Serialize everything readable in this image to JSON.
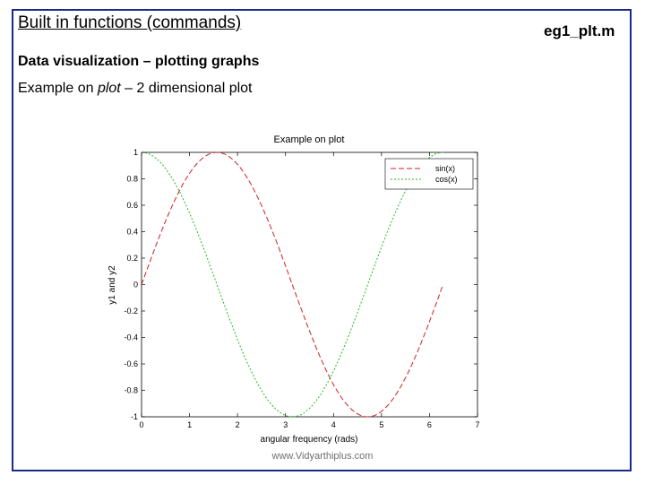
{
  "slide": {
    "title": "Built in functions (commands)",
    "file_name": "eg1_plt.m",
    "heading": "Data visualization – plotting graphs",
    "subheading_prefix": "Example on ",
    "subheading_emph": "plot",
    "subheading_suffix": " – 2 dimensional plot",
    "watermark": "www.Vidyarthiplus.com"
  },
  "colors": {
    "border": "#1a2a8a",
    "sin": "#cc2222",
    "cos": "#22bb22"
  },
  "chart_data": {
    "type": "line",
    "title": "Example on plot",
    "xlabel": "angular frequency (rads)",
    "ylabel": "y1 and y2",
    "xlim": [
      0,
      7
    ],
    "ylim": [
      -1,
      1
    ],
    "xticks": [
      "0",
      "1",
      "2",
      "3",
      "4",
      "5",
      "6",
      "7"
    ],
    "yticks": [
      "1",
      "0.8",
      "0.6",
      "0.4",
      "0.2",
      "0",
      "-0.2",
      "-0.4",
      "-0.6",
      "-0.8",
      "-1"
    ],
    "legend_position": "top-right",
    "grid": false,
    "series": [
      {
        "name": "sin(x)",
        "color": "#cc2222",
        "style": "dashed",
        "x": [
          0,
          0.2618,
          0.5236,
          0.7854,
          1.0472,
          1.309,
          1.5708,
          1.8326,
          2.0944,
          2.3562,
          2.618,
          2.8798,
          3.1416,
          3.4034,
          3.6652,
          3.927,
          4.1888,
          4.4506,
          4.7124,
          4.9742,
          5.236,
          5.4978,
          5.7596,
          6.0214,
          6.2832
        ],
        "values": [
          0,
          0.259,
          0.5,
          0.707,
          0.866,
          0.966,
          1,
          0.966,
          0.866,
          0.707,
          0.5,
          0.259,
          0,
          -0.259,
          -0.5,
          -0.707,
          -0.866,
          -0.966,
          -1,
          -0.966,
          -0.866,
          -0.707,
          -0.5,
          -0.259,
          0
        ]
      },
      {
        "name": "cos(x)",
        "color": "#22bb22",
        "style": "dotted",
        "x": [
          0,
          0.2618,
          0.5236,
          0.7854,
          1.0472,
          1.309,
          1.5708,
          1.8326,
          2.0944,
          2.3562,
          2.618,
          2.8798,
          3.1416,
          3.4034,
          3.6652,
          3.927,
          4.1888,
          4.4506,
          4.7124,
          4.9742,
          5.236,
          5.4978,
          5.7596,
          6.0214,
          6.2832
        ],
        "values": [
          1,
          0.966,
          0.866,
          0.707,
          0.5,
          0.259,
          0,
          -0.259,
          -0.5,
          -0.707,
          -0.866,
          -0.966,
          -1,
          -0.966,
          -0.866,
          -0.707,
          -0.5,
          -0.259,
          0,
          0.259,
          0.5,
          0.707,
          0.866,
          0.966,
          1
        ]
      }
    ]
  }
}
